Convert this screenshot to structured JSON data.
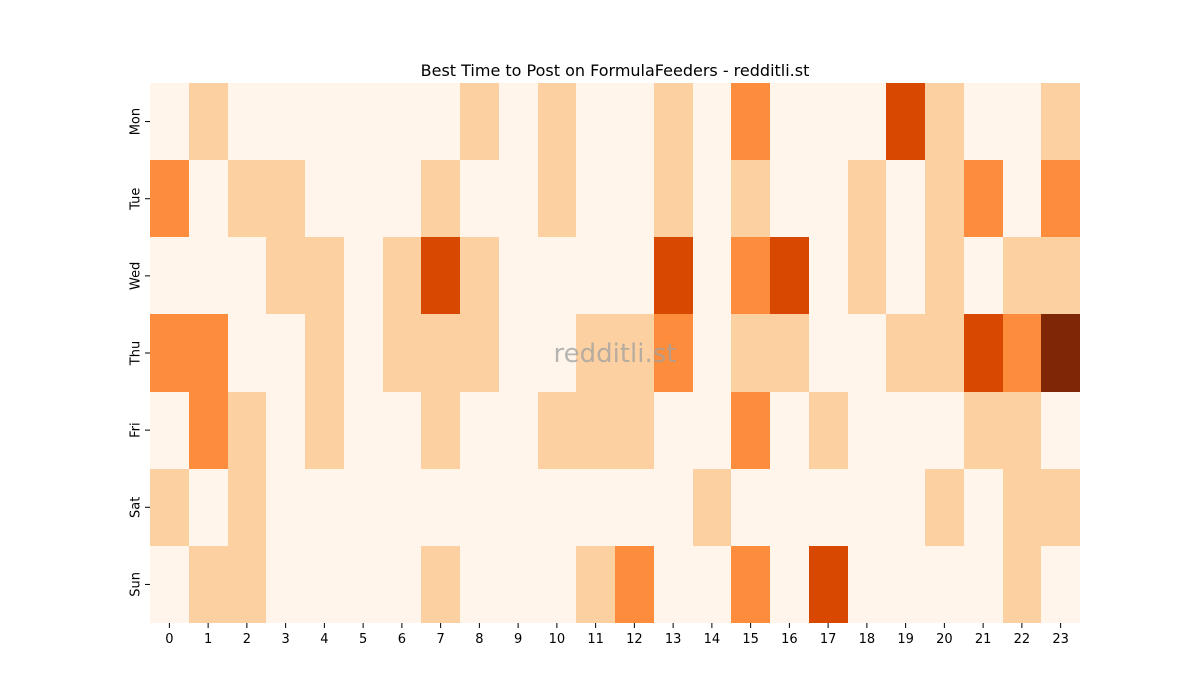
{
  "chart_data": {
    "type": "heatmap",
    "title": "Best Time to Post on FormulaFeeders - redditli.st",
    "xlabel": "",
    "ylabel": "",
    "x_categories": [
      "0",
      "1",
      "2",
      "3",
      "4",
      "5",
      "6",
      "7",
      "8",
      "9",
      "10",
      "11",
      "12",
      "13",
      "14",
      "15",
      "16",
      "17",
      "18",
      "19",
      "20",
      "21",
      "22",
      "23"
    ],
    "y_categories": [
      "Mon",
      "Tue",
      "Wed",
      "Thu",
      "Fri",
      "Sat",
      "Sun"
    ],
    "values": [
      [
        0,
        1,
        0,
        0,
        0,
        0,
        0,
        0,
        1,
        0,
        1,
        0,
        0,
        1,
        0,
        2,
        0,
        0,
        0,
        3,
        1,
        0,
        0,
        1
      ],
      [
        2,
        0,
        1,
        1,
        0,
        0,
        0,
        1,
        0,
        0,
        1,
        0,
        0,
        1,
        0,
        1,
        0,
        0,
        1,
        0,
        1,
        2,
        0,
        2
      ],
      [
        0,
        0,
        0,
        1,
        1,
        0,
        1,
        3,
        1,
        0,
        0,
        0,
        0,
        3,
        0,
        2,
        3,
        0,
        1,
        0,
        1,
        0,
        1,
        1
      ],
      [
        2,
        2,
        0,
        0,
        1,
        0,
        1,
        1,
        1,
        0,
        0,
        1,
        1,
        2,
        0,
        1,
        1,
        0,
        0,
        1,
        1,
        3,
        2,
        4
      ],
      [
        0,
        2,
        1,
        0,
        1,
        0,
        0,
        1,
        0,
        0,
        1,
        1,
        1,
        0,
        0,
        2,
        0,
        1,
        0,
        0,
        0,
        1,
        1,
        0
      ],
      [
        1,
        0,
        1,
        0,
        0,
        0,
        0,
        0,
        0,
        0,
        0,
        0,
        0,
        0,
        1,
        0,
        0,
        0,
        0,
        0,
        1,
        0,
        1,
        1
      ],
      [
        0,
        1,
        1,
        0,
        0,
        0,
        0,
        1,
        0,
        0,
        0,
        1,
        2,
        0,
        0,
        2,
        0,
        3,
        0,
        0,
        0,
        0,
        1,
        0
      ]
    ],
    "value_range": [
      0,
      4
    ],
    "colormap": "Oranges",
    "color_scale": [
      "#fff5eb",
      "#fdd0a2",
      "#fd8d3c",
      "#d94801",
      "#7f2704"
    ],
    "grid": false,
    "colorbar": false,
    "watermark": "redditli.st"
  }
}
